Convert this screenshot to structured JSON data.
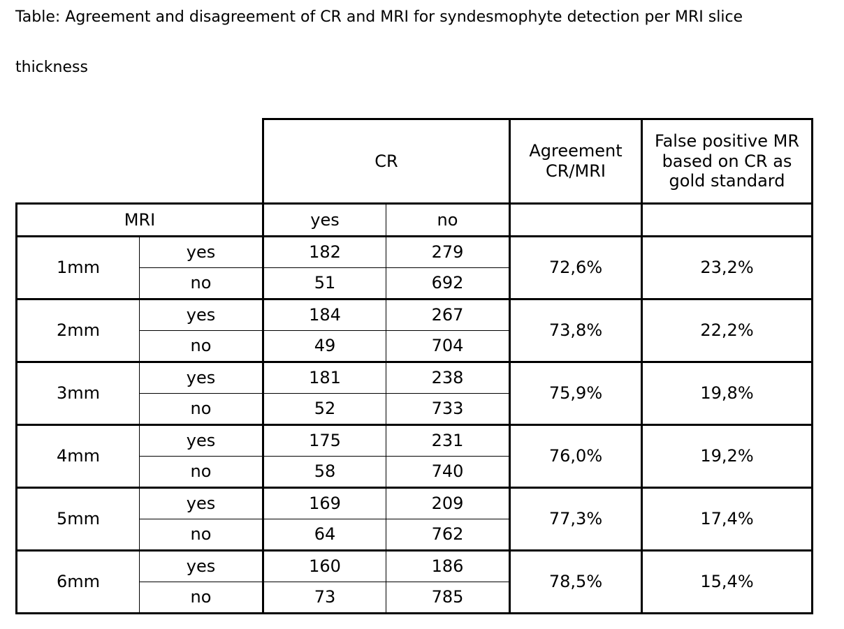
{
  "caption": {
    "line1": "Table: Agreement and disagreement of CR and MRI for syndesmophyte detection per MRI slice",
    "line2": "thickness"
  },
  "header": {
    "cr": "CR",
    "agreement": "Agreement CR/MRI",
    "false_positive": "False positive MR based on CR as gold standard",
    "mri": "MRI",
    "yes": "yes",
    "no": "no"
  },
  "rows": [
    {
      "slice": "1mm",
      "yes_row": {
        "label": "yes",
        "cr_yes": "182",
        "cr_no": "279"
      },
      "no_row": {
        "label": "no",
        "cr_yes": "51",
        "cr_no": "692"
      },
      "agreement": "72,6%",
      "false_positive": "23,2%"
    },
    {
      "slice": "2mm",
      "yes_row": {
        "label": "yes",
        "cr_yes": "184",
        "cr_no": "267"
      },
      "no_row": {
        "label": "no",
        "cr_yes": "49",
        "cr_no": "704"
      },
      "agreement": "73,8%",
      "false_positive": "22,2%"
    },
    {
      "slice": "3mm",
      "yes_row": {
        "label": "yes",
        "cr_yes": "181",
        "cr_no": "238"
      },
      "no_row": {
        "label": "no",
        "cr_yes": "52",
        "cr_no": "733"
      },
      "agreement": "75,9%",
      "false_positive": "19,8%"
    },
    {
      "slice": "4mm",
      "yes_row": {
        "label": "yes",
        "cr_yes": "175",
        "cr_no": "231"
      },
      "no_row": {
        "label": "no",
        "cr_yes": "58",
        "cr_no": "740"
      },
      "agreement": "76,0%",
      "false_positive": "19,2%"
    },
    {
      "slice": "5mm",
      "yes_row": {
        "label": "yes",
        "cr_yes": "169",
        "cr_no": "209"
      },
      "no_row": {
        "label": "no",
        "cr_yes": "64",
        "cr_no": "762"
      },
      "agreement": "77,3%",
      "false_positive": "17,4%"
    },
    {
      "slice": "6mm",
      "yes_row": {
        "label": "yes",
        "cr_yes": "160",
        "cr_no": "186"
      },
      "no_row": {
        "label": "no",
        "cr_yes": "73",
        "cr_no": "785"
      },
      "agreement": "78,5%",
      "false_positive": "15,4%"
    }
  ]
}
